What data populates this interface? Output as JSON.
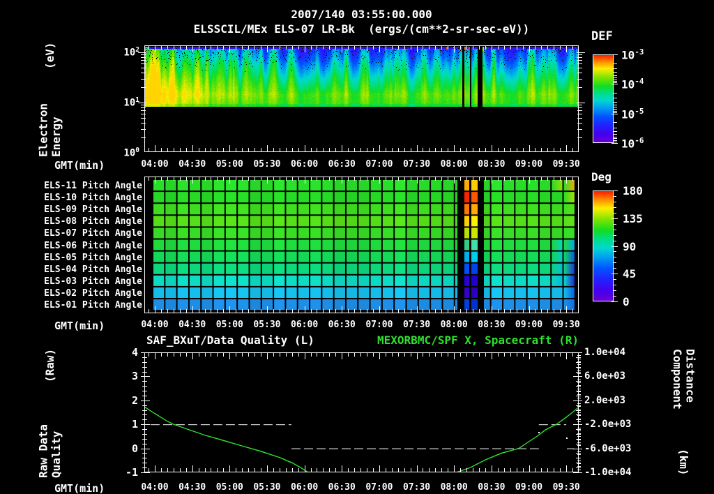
{
  "header": {
    "title_line1": "2007/140 03:55:00.000",
    "title_line2": "ELSSCIL/MEx ELS-07 LR-Bk  (ergs/(cm**2-sr-sec-eV))"
  },
  "time_axis": {
    "label": "GMT(min)",
    "ticks": [
      "04:00",
      "04:30",
      "05:00",
      "05:30",
      "06:00",
      "06:30",
      "07:00",
      "07:30",
      "08:00",
      "08:30",
      "09:00",
      "09:30"
    ]
  },
  "top_panel": {
    "y_label": "Electron Energy",
    "y_label2": "(eV)",
    "y_ticks": [
      "10^2",
      "10^1",
      "10^0"
    ],
    "colorbar": {
      "title": "DEF",
      "ticks": [
        "10^-3",
        "10^-4",
        "10^-5",
        "10^-6"
      ]
    }
  },
  "middle_panel": {
    "row_labels": [
      "ELS-11 Pitch Angle",
      "ELS-10 Pitch Angle",
      "ELS-09 Pitch Angle",
      "ELS-08 Pitch Angle",
      "ELS-07 Pitch Angle",
      "ELS-06 Pitch Angle",
      "ELS-05 Pitch Angle",
      "ELS-04 Pitch Angle",
      "ELS-03 Pitch Angle",
      "ELS-02 Pitch Angle",
      "ELS-01 Pitch Angle"
    ],
    "colorbar": {
      "title": "Deg",
      "ticks": [
        "180",
        "135",
        "90",
        "45",
        "0"
      ]
    }
  },
  "bottom_panel": {
    "title_left": "SAF_BXuT/Data Quality (L)",
    "title_right": "MEXORBMC/SPF X, Spacecraft (R)",
    "y_label": "Raw Data Quality",
    "y_label2": "(Raw)",
    "y_ticks_left": [
      "4",
      "3",
      "2",
      "1",
      "0",
      "-1"
    ],
    "y_label_right": "Component Distance",
    "y_label_right2": "(km)",
    "y_ticks_right": [
      "1.0e+04",
      "6.0e+03",
      "2.0e+03",
      "-2.0e+03",
      "-6.0e+03",
      "-1.0e+04"
    ]
  },
  "colors": {
    "background": "#000000",
    "axis": "#ffffff",
    "text": "#ffffff",
    "green_accent": "#2ce22c"
  },
  "chart_data": [
    {
      "type": "heatmap",
      "name": "electron-energy-spectrogram",
      "title": "ELSSCIL/MEx ELS-07 LR-Bk (ergs/(cm**2-sr-sec-eV))",
      "x_range_gmt": [
        "03:55",
        "09:40"
      ],
      "x_ticks": [
        "04:00",
        "04:30",
        "05:00",
        "05:30",
        "06:00",
        "06:30",
        "07:00",
        "07:30",
        "08:00",
        "08:30",
        "09:00",
        "09:30"
      ],
      "y_axis": {
        "label": "Electron Energy (eV)",
        "scale": "log",
        "ticks": [
          100,
          10,
          1
        ]
      },
      "colorbar": {
        "label": "DEF",
        "units": "ergs/(cm**2-sr-sec-eV)",
        "scale": "log",
        "ticks": [
          0.001,
          0.0001,
          1e-05,
          1e-06
        ]
      },
      "data_extent_ev": [
        10,
        200
      ],
      "description": "Broadband electron flux 10-200 eV; bright green (~1e-4) below ~20 eV, fading through cyan and blue to violet (~1e-6) at 100+ eV; intense green plumes 03:55-04:40; data dropout gaps near 08:10-08:22 with red/orange flux spikes at top",
      "palette_stops": [
        [
          0.0,
          "#6a00d0"
        ],
        [
          0.1,
          "#4400ee"
        ],
        [
          0.2,
          "#2222ff"
        ],
        [
          0.3,
          "#0055ff"
        ],
        [
          0.4,
          "#00a0f0"
        ],
        [
          0.48,
          "#00d8d0"
        ],
        [
          0.56,
          "#00dd88"
        ],
        [
          0.64,
          "#11dd22"
        ],
        [
          0.74,
          "#7fe300"
        ],
        [
          0.84,
          "#ffee00"
        ],
        [
          0.92,
          "#ff8800"
        ],
        [
          1.0,
          "#ff1100"
        ]
      ],
      "gap_columns_x": [
        [
          456,
          3
        ],
        [
          467,
          2
        ],
        [
          478,
          7
        ]
      ],
      "top_spikes": [
        [
          433,
          "#ff4400",
          3
        ],
        [
          443,
          "#ff8800",
          2
        ],
        [
          453,
          "#ff2200",
          5
        ],
        [
          459,
          "#ff8800",
          3
        ],
        [
          465,
          "#ff3300",
          4
        ],
        [
          485,
          "#aaee00",
          6
        ],
        [
          489,
          "#22dd22",
          3
        ]
      ],
      "seed": 20071403
    },
    {
      "type": "heatmap",
      "name": "pitch-angle-panels",
      "rows": [
        "ELS-11",
        "ELS-10",
        "ELS-09",
        "ELS-08",
        "ELS-07",
        "ELS-06",
        "ELS-05",
        "ELS-04",
        "ELS-03",
        "ELS-02",
        "ELS-01"
      ],
      "colorbar": {
        "label": "Deg",
        "ticks": [
          180,
          135,
          90,
          45,
          0
        ]
      },
      "approx_row_values_deg": [
        95,
        94,
        102,
        108,
        97,
        88,
        80,
        70,
        55,
        42,
        30
      ],
      "row_colors": [
        "#2adf2a",
        "#27db26",
        "#3fdf1f",
        "#55e019",
        "#38dd25",
        "#20dc3e",
        "#15da58",
        "#0ed87e",
        "#0edcc4",
        "#16c0ec",
        "#1e8fe8"
      ],
      "right_edge_targets": [
        "#ffaa00",
        "#b8e000",
        "#55e019",
        "#66e014",
        "#38dd25",
        "#00a0f0",
        "#0050f0",
        "#2020e0",
        "#2010d8",
        "#0055e0",
        "#0c6ae0"
      ],
      "right_edge2_targets": [
        "#9fe000",
        null,
        null,
        null,
        null,
        "#00d8c8",
        "#00ccd8",
        "#00c0e0",
        "#00b8e0",
        null,
        null
      ],
      "anomaly": {
        "black_columns": [
          [
            456,
            3
          ],
          [
            466,
            3
          ],
          [
            478,
            7
          ]
        ],
        "stripes": [
          {
            "x": 459,
            "w": 7,
            "colors": [
              "#ffaa00",
              "#ff2200",
              "#ff7700",
              "#ffd000",
              "#b8e000",
              "#33cc88",
              "#00b0ee",
              "#0050ff",
              "#2800e0",
              "#3300cc",
              "#0040dd"
            ]
          },
          {
            "x": 469,
            "w": 9,
            "colors": [
              "#ffcc00",
              "#ff5500",
              "#ffaa00",
              "#ffee00",
              "#cce600",
              "#44ddaa",
              "#00ccee",
              "#0044ee",
              "#2200cc",
              "#2a00bb",
              "#0033cc"
            ]
          }
        ]
      },
      "grid_color": "#000000",
      "seed": 77
    },
    {
      "type": "line",
      "name": "quality-and-spacecraft-x",
      "x_range_gmt": [
        "03:55",
        "09:40"
      ],
      "left_axis": {
        "label": "Raw Data Quality (Raw)",
        "range": [
          -1,
          4
        ]
      },
      "right_axis": {
        "label": "Component Distance (km)",
        "range": [
          -10000,
          10000
        ]
      },
      "series": [
        {
          "name": "SAF_BXuT/Data Quality (L)",
          "style": "dashed-white",
          "axis": "left",
          "segments": [
            {
              "value": 1,
              "t_min": [
                1.6,
                114.6
              ]
            },
            {
              "value": 0,
              "t_min": [
                114.6,
                313.0
              ]
            },
            {
              "value": 1,
              "t_min": [
                313.0,
                335.0
              ]
            },
            {
              "value": 0,
              "t_min": [
                335.5,
                341.0
              ]
            }
          ],
          "stray_dots_local_xy": [
            [
              565,
              114
            ],
            [
              605,
              122
            ]
          ]
        },
        {
          "name": "MEXORBMC/SPF X, Spacecraft (R)",
          "style": "solid-green",
          "axis": "left-equivalent",
          "samples_t_raw": [
            [
              -3,
              1.72
            ],
            [
              5,
              1.45
            ],
            [
              15,
              1.13
            ],
            [
              20,
              1.0
            ],
            [
              30,
              0.82
            ],
            [
              45,
              0.55
            ],
            [
              60,
              0.33
            ],
            [
              75,
              0.1
            ],
            [
              90,
              -0.12
            ],
            [
              105,
              -0.38
            ],
            [
              115,
              -0.6
            ],
            [
              122,
              -0.8
            ],
            [
              128,
              -1.0
            ],
            [
              140,
              -1.3
            ],
            [
              160,
              -1.52
            ],
            [
              180,
              -1.6
            ],
            [
              200,
              -1.55
            ],
            [
              220,
              -1.38
            ],
            [
              235,
              -1.18
            ],
            [
              247,
              -1.0
            ],
            [
              258,
              -0.8
            ],
            [
              270,
              -0.48
            ],
            [
              283,
              -0.2
            ],
            [
              297,
              0.0
            ],
            [
              305,
              0.28
            ],
            [
              312,
              0.52
            ],
            [
              318,
              0.76
            ],
            [
              327,
              1.0
            ],
            [
              333,
              1.22
            ],
            [
              340,
              1.5
            ],
            [
              345,
              1.72
            ]
          ]
        }
      ]
    }
  ]
}
